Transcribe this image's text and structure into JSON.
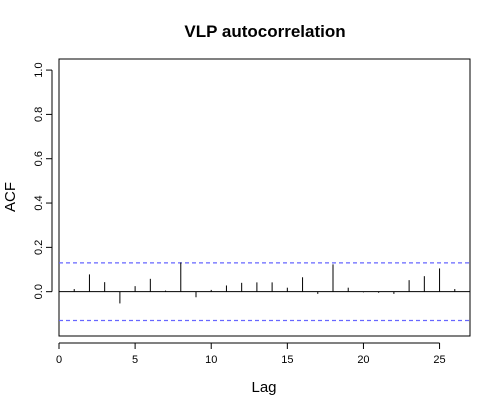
{
  "chart_data": {
    "type": "bar",
    "title": "VLP autocorrelation",
    "xlabel": "Lag",
    "ylabel": "ACF",
    "xlim": [
      0,
      27
    ],
    "ylim": [
      -0.2,
      1.05
    ],
    "x_ticks": [
      0,
      5,
      10,
      15,
      20,
      25
    ],
    "y_ticks": [
      0.0,
      0.2,
      0.4,
      0.6,
      0.8,
      1.0
    ],
    "y_tick_labels": [
      "0.0",
      "0.2",
      "0.4",
      "0.6",
      "0.8",
      "1.0"
    ],
    "x_tick_labels": [
      "0",
      "5",
      "10",
      "15",
      "20",
      "25"
    ],
    "confidence_band": 0.13,
    "band_color": "#6666ff",
    "lags": [
      1,
      2,
      3,
      4,
      5,
      6,
      7,
      8,
      9,
      10,
      11,
      12,
      13,
      14,
      15,
      16,
      17,
      18,
      19,
      20,
      21,
      22,
      23,
      24,
      25,
      26
    ],
    "values": [
      0.012,
      0.078,
      0.043,
      -0.053,
      0.025,
      0.058,
      0.005,
      0.132,
      -0.025,
      0.008,
      0.028,
      0.04,
      0.042,
      0.042,
      0.018,
      0.065,
      -0.01,
      0.123,
      0.018,
      -0.003,
      -0.005,
      -0.01,
      0.052,
      0.07,
      0.105,
      0.012
    ],
    "grid": false,
    "legend": "none"
  }
}
